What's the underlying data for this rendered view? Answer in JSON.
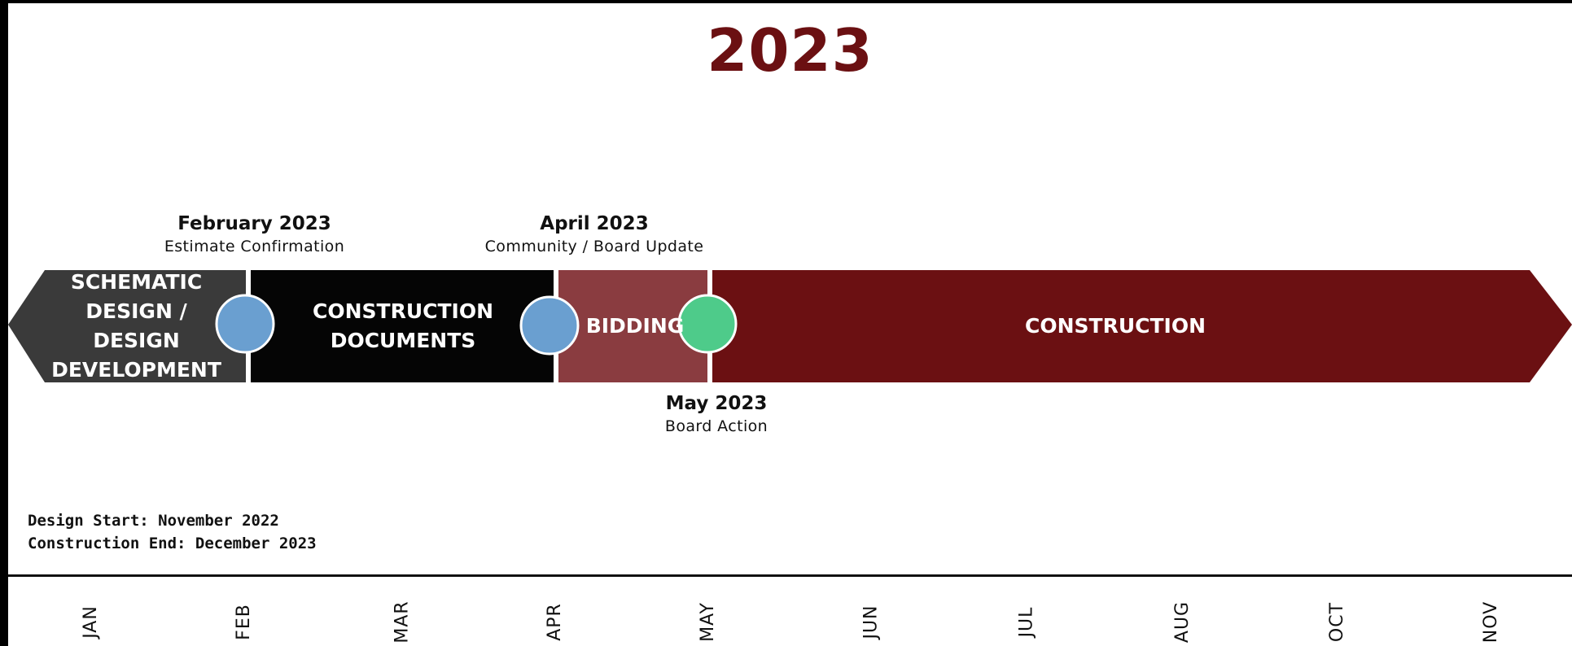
{
  "title": "2023",
  "milestones": [
    {
      "date": "February 2023",
      "desc": "Estimate Confirmation"
    },
    {
      "date": "April 2023",
      "desc": "Community / Board Update"
    },
    {
      "date": "May 2023",
      "desc": "Board Action"
    }
  ],
  "phases": [
    {
      "label": "SCHEMATIC\nDESIGN / DESIGN\nDEVELOPMENT",
      "color": "#3a3a3a"
    },
    {
      "label": "CONSTRUCTION\nDOCUMENTS",
      "color": "#050505"
    },
    {
      "label": "BIDDING",
      "color": "#8a3c40"
    },
    {
      "label": "CONSTRUCTION",
      "color": "#6b1012"
    }
  ],
  "marker_colors": [
    "#6a9fd0",
    "#6a9fd0",
    "#4ecb8a"
  ],
  "notes": {
    "design_start": "Design Start: November 2022",
    "construction_end": "Construction End: December 2023"
  },
  "months": [
    "JAN",
    "FEB",
    "MAR",
    "APR",
    "MAY",
    "JUN",
    "JUL",
    "AUG",
    "OCT",
    "NOV"
  ]
}
